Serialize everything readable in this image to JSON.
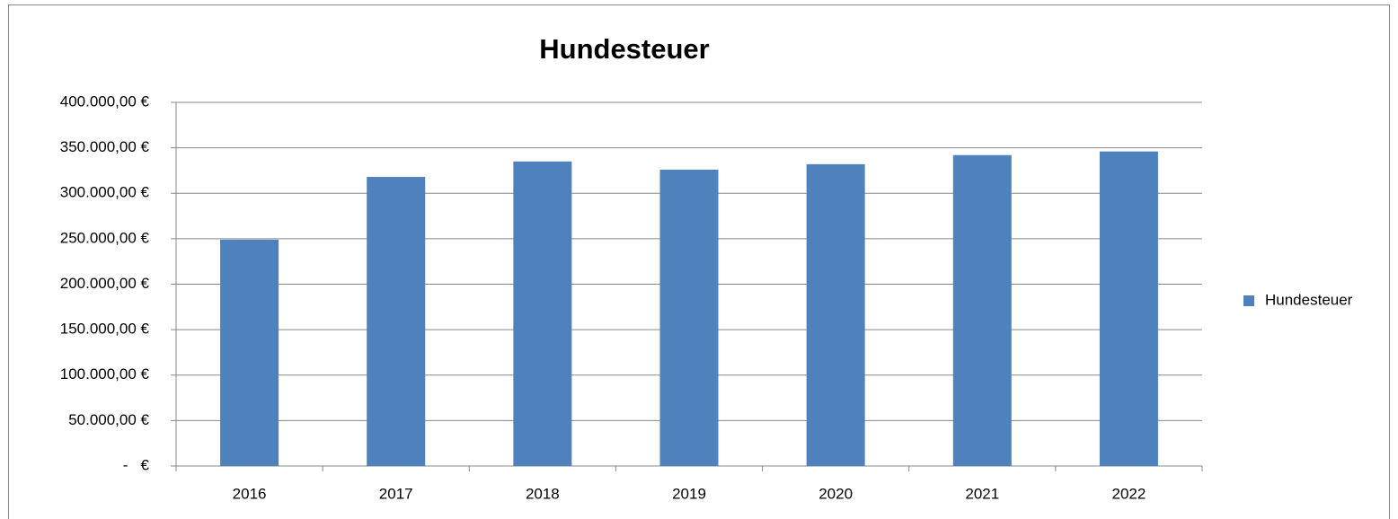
{
  "chart_data": {
    "type": "bar",
    "title": "Hundesteuer",
    "categories": [
      "2016",
      "2017",
      "2018",
      "2019",
      "2020",
      "2021",
      "2022"
    ],
    "series": [
      {
        "name": "Hundesteuer",
        "color": "#4f81bd",
        "values": [
          249000,
          318000,
          335000,
          326000,
          332000,
          342000,
          346000
        ]
      }
    ],
    "ylim": [
      0,
      400000
    ],
    "yticks": [
      {
        "value": 0,
        "label": "-   €"
      },
      {
        "value": 50000,
        "label": "50.000,00 €"
      },
      {
        "value": 100000,
        "label": "100.000,00 €"
      },
      {
        "value": 150000,
        "label": "150.000,00 €"
      },
      {
        "value": 200000,
        "label": "200.000,00 €"
      },
      {
        "value": 250000,
        "label": "250.000,00 €"
      },
      {
        "value": 300000,
        "label": "300.000,00 €"
      },
      {
        "value": 350000,
        "label": "350.000,00 €"
      },
      {
        "value": 400000,
        "label": "400.000,00 €"
      }
    ],
    "grid": true,
    "legend": "right"
  }
}
